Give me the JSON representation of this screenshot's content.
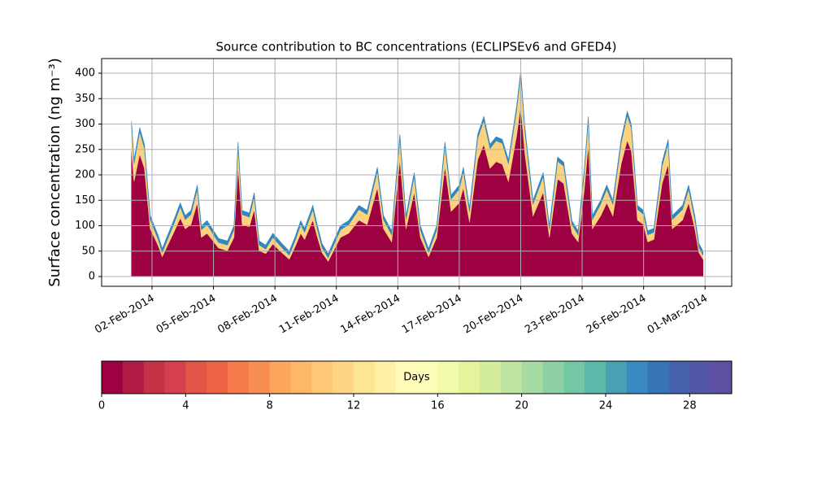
{
  "chart_data": {
    "type": "stacked-area",
    "title": "Source contribution to BC concentrations (ECLIPSEv6 and GFED4)",
    "y_label": "Surface concentration (ng m⁻³)",
    "x": [
      0,
      0.12,
      0.4,
      0.63,
      0.91,
      1.31,
      1.5,
      2.1,
      2.38,
      2.62,
      2.9,
      3.21,
      3.41,
      3.69,
      4.25,
      4.68,
      5.0,
      5.2,
      5.4,
      5.75,
      5.99,
      6.23,
      6.55,
      6.9,
      7.34,
      7.7,
      8.0,
      8.26,
      8.45,
      8.85,
      9.05,
      9.3,
      9.6,
      10.2,
      10.6,
      11.1,
      11.5,
      12.0,
      12.3,
      12.7,
      13.1,
      13.4,
      13.8,
      14.1,
      14.5,
      14.9,
      15.3,
      15.6,
      16.0,
      16.2,
      16.5,
      16.9,
      17.2,
      17.5,
      17.8,
      18.1,
      18.4,
      18.8,
      19.0,
      19.2,
      19.6,
      20.1,
      20.4,
      20.8,
      21.1,
      21.5,
      21.8,
      22.1,
      22.3,
      22.5,
      22.9,
      23.2,
      23.5,
      23.9,
      24.2,
      24.4,
      24.7,
      25.0,
      25.2,
      25.5,
      25.9,
      26.2,
      26.4,
      26.9,
      27.2,
      27.5,
      27.7,
      27.9
    ],
    "series": [
      {
        "color": "#9e0142",
        "values": [
          251,
          187,
          241,
          213,
          94,
          60,
          39,
          90,
          115,
          94,
          102,
          145,
          77,
          85,
          56,
          51,
          77,
          217,
          102,
          98,
          132,
          51,
          45,
          64,
          47,
          34,
          60,
          85,
          73,
          111,
          81,
          47,
          30,
          77,
          85,
          111,
          102,
          175,
          94,
          68,
          230,
          94,
          166,
          77,
          39,
          77,
          217,
          128,
          145,
          175,
          107,
          230,
          260,
          213,
          226,
          221,
          187,
          277,
          336,
          243,
          119,
          166,
          77,
          192,
          183,
          85,
          68,
          170,
          260,
          94,
          119,
          145,
          119,
          221,
          268,
          247,
          111,
          102,
          68,
          73,
          183,
          221,
          94,
          111,
          145,
          94,
          47,
          34
        ]
      },
      {
        "color": "#fdd27f",
        "values": [
          46,
          35,
          44,
          39,
          18,
          12,
          8,
          17,
          22,
          18,
          20,
          27,
          15,
          17,
          11,
          11,
          15,
          40,
          20,
          19,
          25,
          11,
          9,
          13,
          10,
          8,
          12,
          17,
          14,
          21,
          16,
          10,
          7,
          15,
          17,
          21,
          20,
          32,
          18,
          14,
          42,
          18,
          31,
          15,
          8,
          15,
          40,
          24,
          27,
          32,
          20,
          42,
          47,
          39,
          41,
          41,
          35,
          50,
          61,
          44,
          23,
          31,
          15,
          35,
          34,
          17,
          14,
          32,
          47,
          18,
          23,
          27,
          23,
          41,
          49,
          45,
          21,
          20,
          14,
          14,
          34,
          41,
          18,
          21,
          27,
          18,
          10,
          8
        ]
      },
      {
        "color": "#3288bd",
        "values": [
          8,
          8,
          8,
          8,
          8,
          8,
          8,
          8,
          8,
          8,
          8,
          8,
          8,
          8,
          8,
          8,
          8,
          8,
          8,
          8,
          8,
          8,
          8,
          8,
          8,
          8,
          8,
          8,
          8,
          8,
          8,
          8,
          8,
          8,
          8,
          8,
          8,
          8,
          8,
          8,
          8,
          8,
          8,
          8,
          8,
          8,
          8,
          8,
          8,
          8,
          8,
          8,
          8,
          8,
          8,
          8,
          8,
          8,
          8,
          8,
          8,
          8,
          8,
          8,
          8,
          8,
          8,
          8,
          8,
          8,
          8,
          8,
          8,
          8,
          8,
          8,
          8,
          8,
          8,
          8,
          8,
          8,
          8,
          8,
          8,
          8,
          8,
          8
        ]
      }
    ],
    "xlim": [
      -1.46,
      29.3
    ],
    "xticks": [
      {
        "value": 1,
        "label": "02-Feb-2014"
      },
      {
        "value": 4,
        "label": "05-Feb-2014"
      },
      {
        "value": 7,
        "label": "08-Feb-2014"
      },
      {
        "value": 10,
        "label": "11-Feb-2014"
      },
      {
        "value": 13,
        "label": "14-Feb-2014"
      },
      {
        "value": 16,
        "label": "17-Feb-2014"
      },
      {
        "value": 19,
        "label": "20-Feb-2014"
      },
      {
        "value": 22,
        "label": "23-Feb-2014"
      },
      {
        "value": 25,
        "label": "26-Feb-2014"
      },
      {
        "value": 28,
        "label": "01-Mar-2014"
      }
    ],
    "ylim": [
      -19.2,
      428.8
    ],
    "yticks": [
      0,
      50,
      100,
      150,
      200,
      250,
      300,
      350,
      400
    ],
    "grid": true,
    "colorbar": {
      "label": "Days",
      "lim": [
        0,
        30
      ],
      "ticks": [
        0,
        4,
        8,
        12,
        16,
        20,
        24,
        28
      ],
      "colors": [
        "#9e0142",
        "#b11c44",
        "#c43245",
        "#d6404e",
        "#e35549",
        "#ec6445",
        "#f67a49",
        "#f98e52",
        "#fca55c",
        "#fdb768",
        "#fec877",
        "#fed683",
        "#fee593",
        "#fff0a6",
        "#fffbb8",
        "#fbfdb8",
        "#f2faac",
        "#e5f49b",
        "#d3ed9c",
        "#bee5a0",
        "#a7dba4",
        "#8ed0a4",
        "#74c7a5",
        "#5db8a9",
        "#48a0b2",
        "#3a8ac1",
        "#3575b5",
        "#4562ab",
        "#5356a4",
        "#5e4fa2"
      ]
    }
  }
}
